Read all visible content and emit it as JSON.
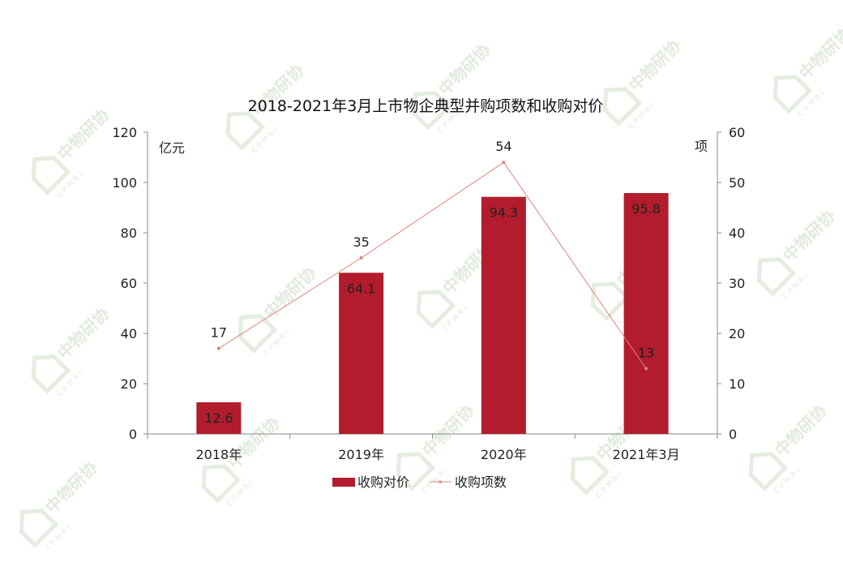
{
  "watermark": {
    "text": "中物研协",
    "sub": "CPMRI",
    "color": "#cfe0c8"
  },
  "chart_data": {
    "type": "bar",
    "title": "2018-2021年3月上市物企典型并购项数和收购对价",
    "categories": [
      "2018年",
      "2019年",
      "2020年",
      "2021年3月"
    ],
    "y_left": {
      "unit": "亿元",
      "ylim": [
        0,
        120
      ],
      "ticks": [
        0,
        20,
        40,
        60,
        80,
        100,
        120
      ]
    },
    "y_right": {
      "unit": "项",
      "ylim": [
        0,
        60
      ],
      "ticks": [
        0,
        10,
        20,
        30,
        40,
        50,
        60
      ]
    },
    "grid": false,
    "legend_position": "bottom",
    "series": [
      {
        "name": "收购对价",
        "type": "bar",
        "axis": "left",
        "color": "#b21c2d",
        "values": [
          12.6,
          64.1,
          94.3,
          95.8
        ]
      },
      {
        "name": "收购项数",
        "type": "line",
        "axis": "right",
        "color": "#e0837f",
        "values": [
          17,
          35,
          54,
          13
        ]
      }
    ]
  }
}
